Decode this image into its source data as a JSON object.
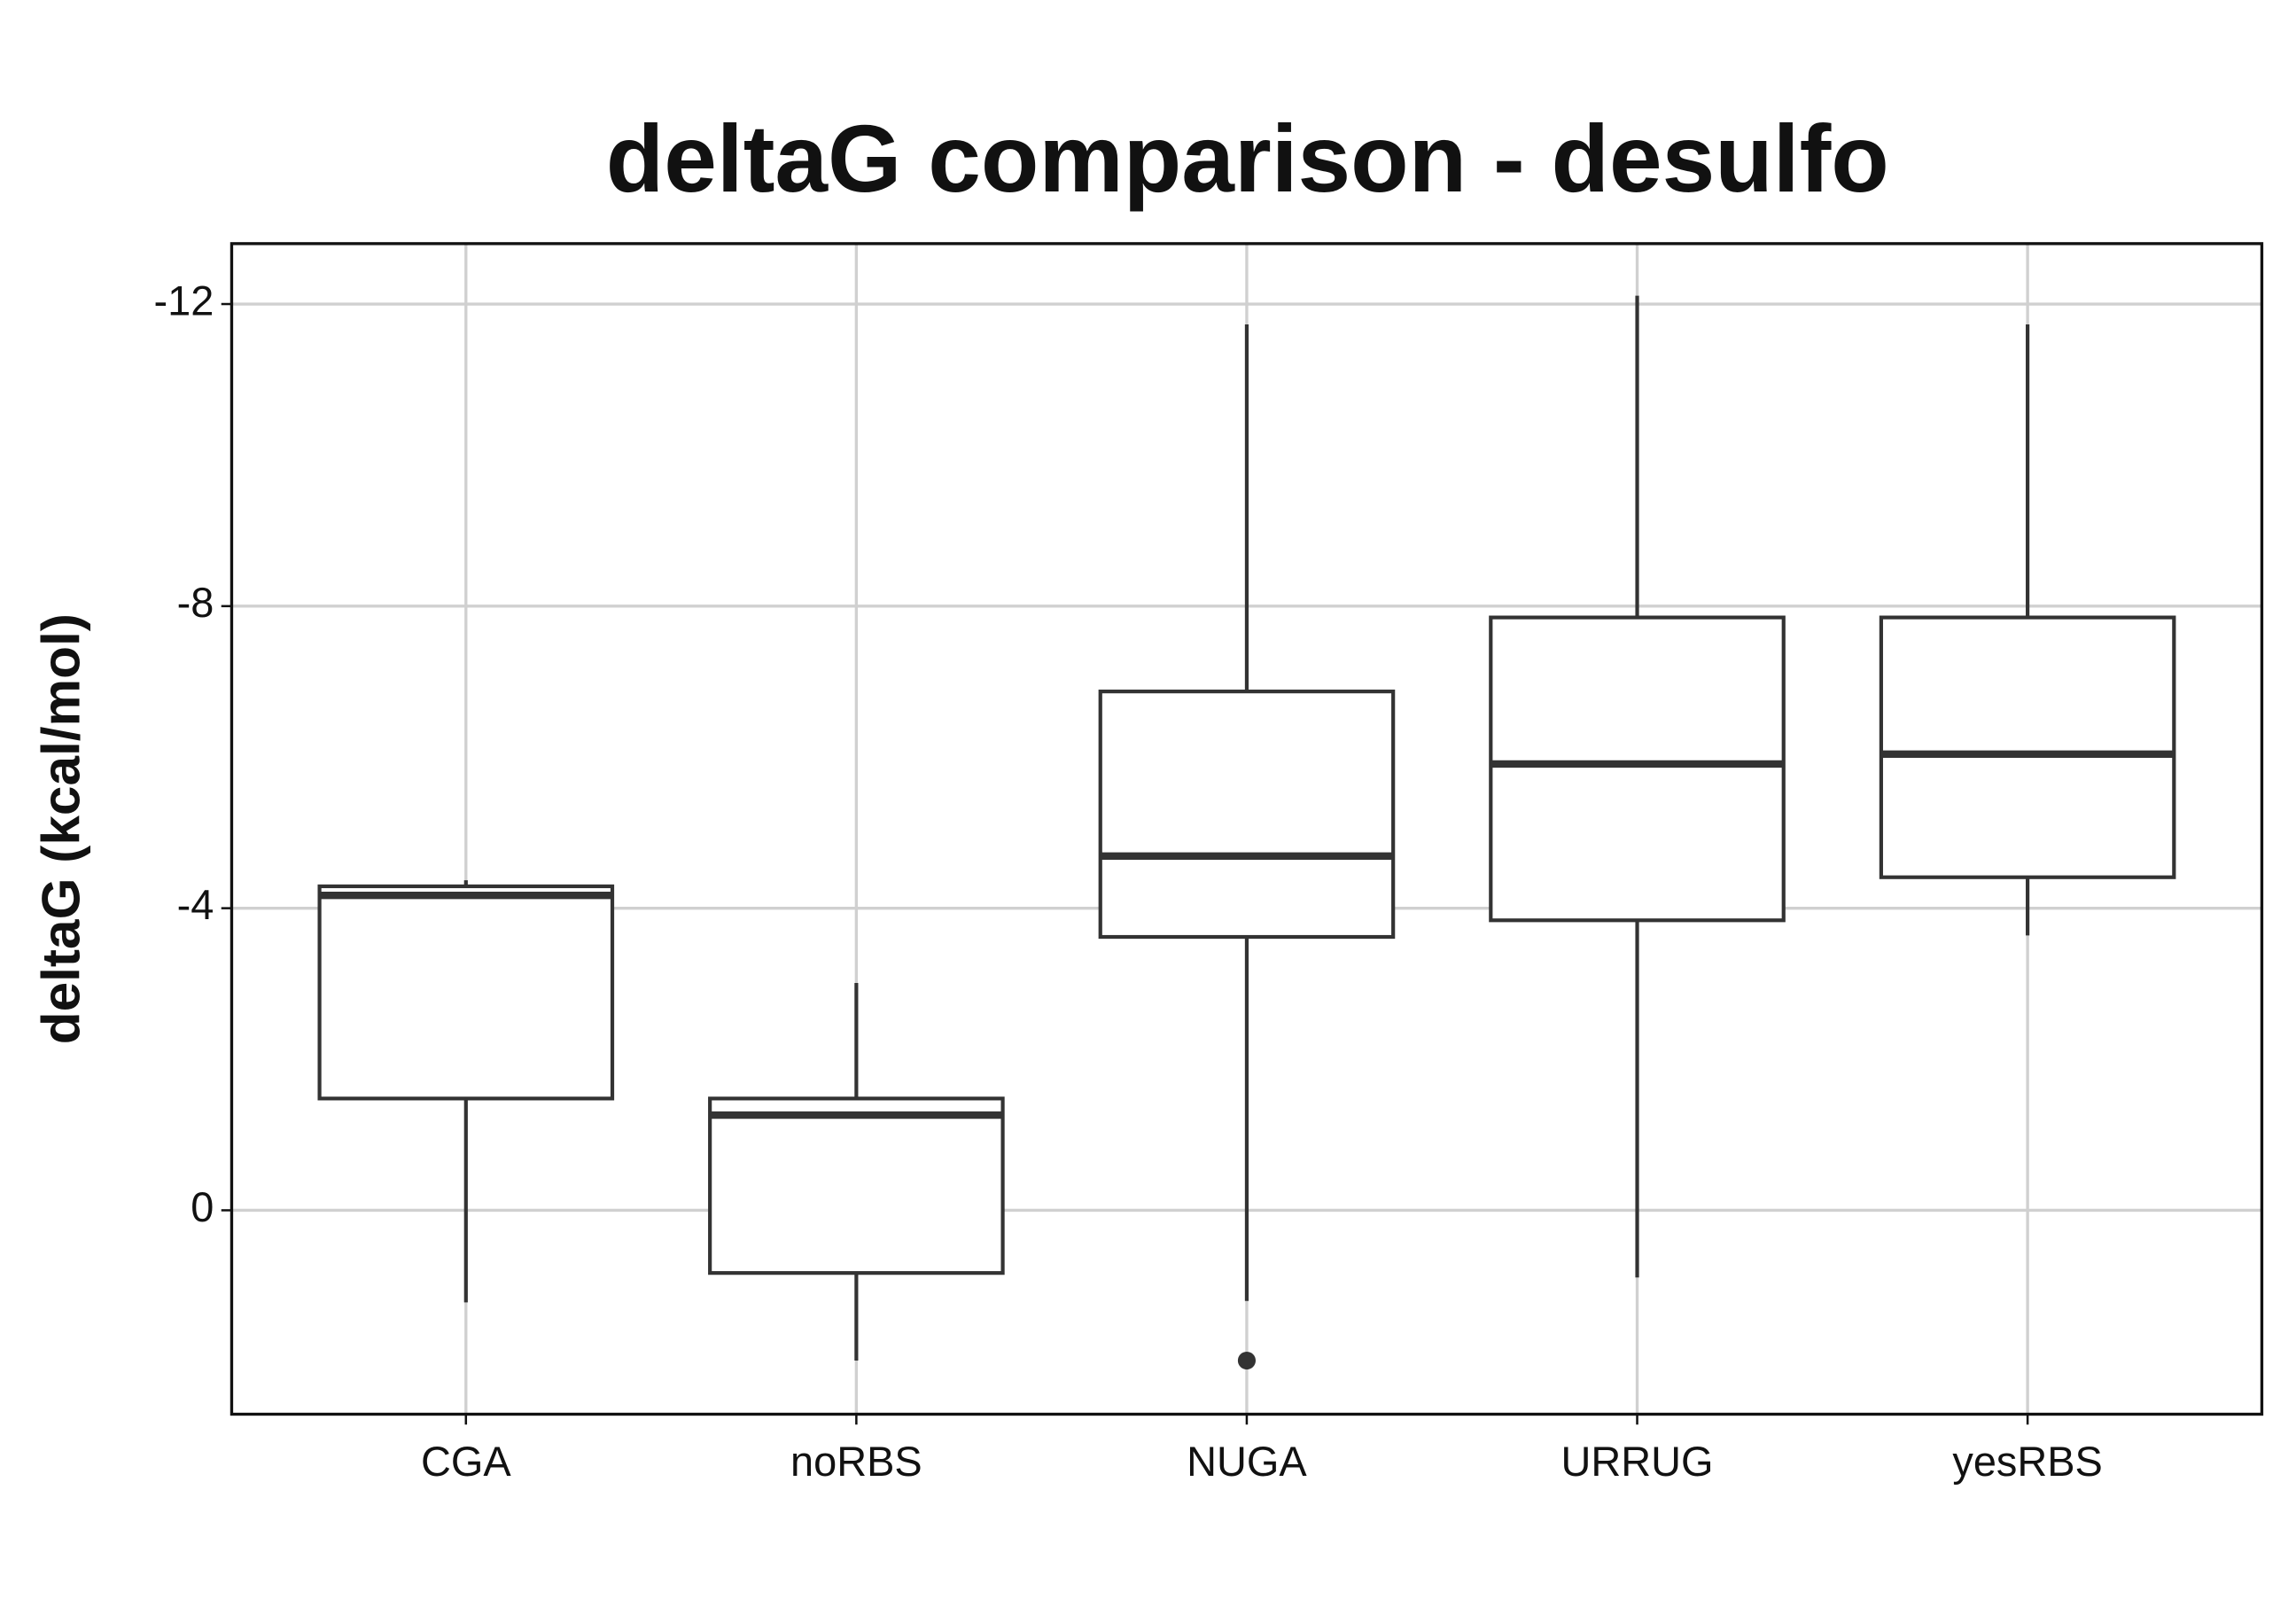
{
  "chart_data": {
    "type": "boxplot",
    "title": "deltaG comparison - desulfo",
    "y_label": "deltaG (kcal/mol)",
    "categories": [
      "CGA",
      "noRBS",
      "NUGA",
      "URRUG",
      "yesRBS"
    ],
    "whisker_low": [
      1.22,
      1.99,
      1.2,
      0.89,
      -3.64
    ],
    "q1": [
      -1.48,
      0.83,
      -3.62,
      -3.84,
      -4.41
    ],
    "median": [
      -4.17,
      -1.26,
      -4.69,
      -5.91,
      -6.04
    ],
    "q3": [
      -4.29,
      -1.48,
      -6.87,
      -7.85,
      -7.85
    ],
    "whisker_high": [
      -4.37,
      -3.01,
      -11.73,
      -12.11,
      -11.73
    ],
    "outliers": [
      [],
      [],
      [
        1.99
      ],
      [],
      []
    ],
    "ylim": [
      2.7,
      -12.8
    ],
    "yticks": [
      -12,
      -8,
      -4,
      0
    ],
    "grid": true,
    "color": "#333333"
  }
}
